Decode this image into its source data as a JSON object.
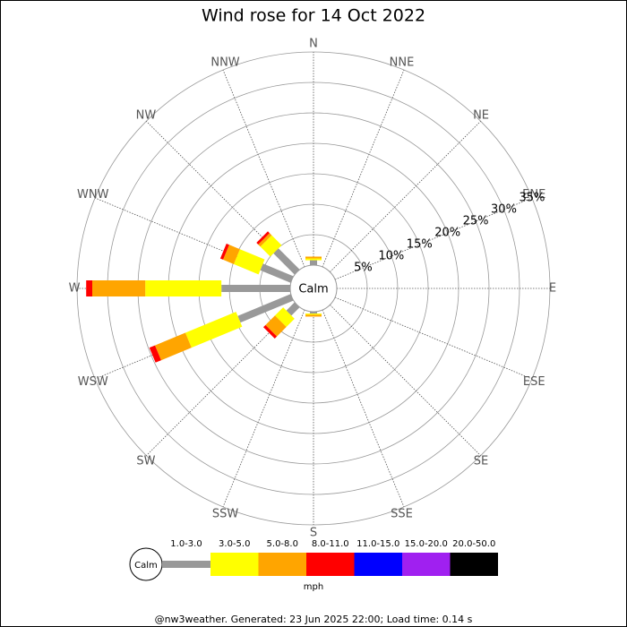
{
  "chart_data": {
    "type": "windrose",
    "title": "Wind rose for 14 Oct 2022",
    "directions": [
      "N",
      "NNE",
      "NE",
      "ENE",
      "E",
      "ESE",
      "SE",
      "SSE",
      "S",
      "SSW",
      "SW",
      "WSW",
      "W",
      "WNW",
      "NW",
      "NNW"
    ],
    "calm_label": "Calm",
    "unit": "mph",
    "footer": "@nw3weather. Generated: 23 Jun 2025 22:00; Load time: 0.14 s",
    "rlim": [
      0,
      35
    ],
    "rticks": [
      {
        "value": 5,
        "label": "5%"
      },
      {
        "value": 10,
        "label": "10%"
      },
      {
        "value": 15,
        "label": "15%"
      },
      {
        "value": 20,
        "label": "20%"
      },
      {
        "value": 25,
        "label": "25%"
      },
      {
        "value": 30,
        "label": "30%"
      },
      {
        "value": 35,
        "label": "35%"
      }
    ],
    "series": [
      {
        "name": "1.0-3.0",
        "color": "#999999",
        "values": [
          0.8,
          0,
          0,
          0,
          0,
          0,
          0,
          0,
          0.3,
          0,
          1.9,
          9.4,
          11.3,
          5.4,
          4.9,
          0
        ]
      },
      {
        "name": "3.0-5.0",
        "color": "#ffff00",
        "values": [
          0.3,
          0,
          0,
          0,
          0,
          0,
          0,
          0,
          0.2,
          0,
          1.9,
          9,
          12.5,
          4.4,
          2.3,
          0
        ]
      },
      {
        "name": "5.0-8.0",
        "color": "#ffa500",
        "values": [
          0.3,
          0,
          0,
          0,
          0,
          0,
          0,
          0,
          0.3,
          0,
          2.2,
          5.4,
          8.7,
          1.9,
          0.5,
          0
        ]
      },
      {
        "name": "8.0-11.0",
        "color": "#ff0000",
        "values": [
          0,
          0,
          0,
          0,
          0,
          0,
          0,
          0,
          0,
          0,
          0.5,
          1,
          1,
          0.5,
          0.4,
          0
        ]
      },
      {
        "name": "11.0-15.0",
        "color": "#0000ff",
        "values": [
          0,
          0,
          0,
          0,
          0,
          0,
          0,
          0,
          0,
          0,
          0,
          0,
          0,
          0,
          0,
          0
        ]
      },
      {
        "name": "15.0-20.0",
        "color": "#a020f0",
        "values": [
          0,
          0,
          0,
          0,
          0,
          0,
          0,
          0,
          0,
          0,
          0,
          0,
          0,
          0,
          0,
          0
        ]
      },
      {
        "name": "20.0-50.0",
        "color": "#000000",
        "values": [
          0,
          0,
          0,
          0,
          0,
          0,
          0,
          0,
          0,
          0,
          0,
          0,
          0,
          0,
          0,
          0
        ]
      }
    ]
  }
}
